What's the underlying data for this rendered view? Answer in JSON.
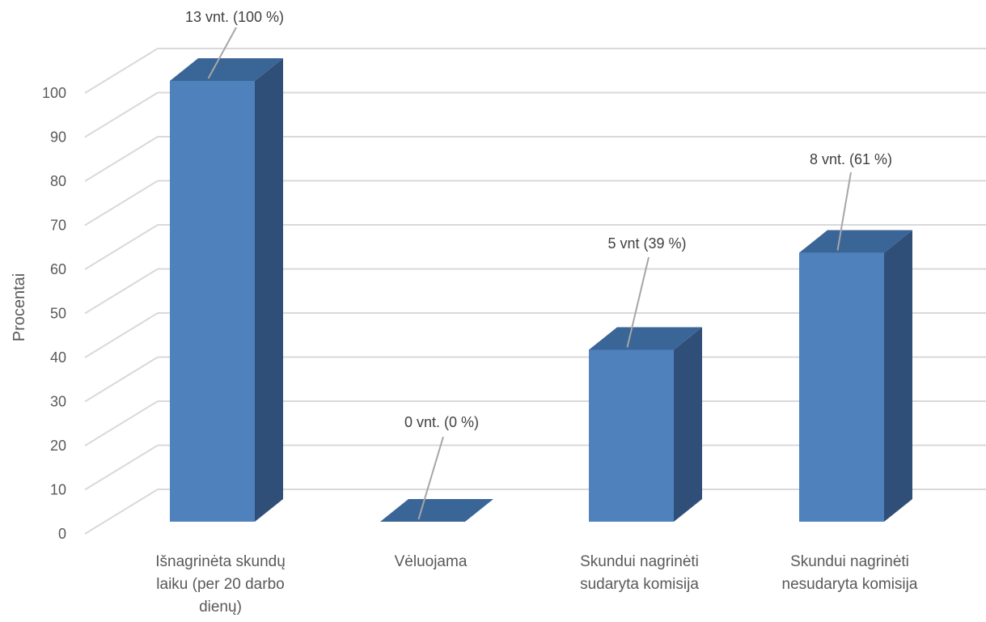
{
  "chart_data": {
    "type": "bar",
    "three_d": true,
    "title": "",
    "xlabel": "",
    "ylabel": "Procentai",
    "ylim": [
      0,
      100
    ],
    "yticks": [
      0,
      10,
      20,
      30,
      40,
      50,
      60,
      70,
      80,
      90,
      100
    ],
    "grid": true,
    "categories": [
      [
        "Išnagrinėta skundų",
        "laiku (per 20 darbo",
        "dienų)"
      ],
      [
        "Vėluojama"
      ],
      [
        "Skundui nagrinėti",
        "sudaryta komisija"
      ],
      [
        "Skundui nagrinėti",
        "nesudaryta komisija"
      ]
    ],
    "values": [
      100,
      0,
      39,
      61
    ],
    "data_labels": [
      "13 vnt. (100 %)",
      "0 vnt. (0 %)",
      "5 vnt (39 %)",
      "8 vnt. (61 %)"
    ],
    "colors": {
      "bar_front": "#4f81bd",
      "bar_side": "#2f4f79",
      "bar_top": "#3a6597",
      "grid": "#d9d9d9",
      "leader": "#a6a6a6",
      "text": "#595959"
    }
  }
}
